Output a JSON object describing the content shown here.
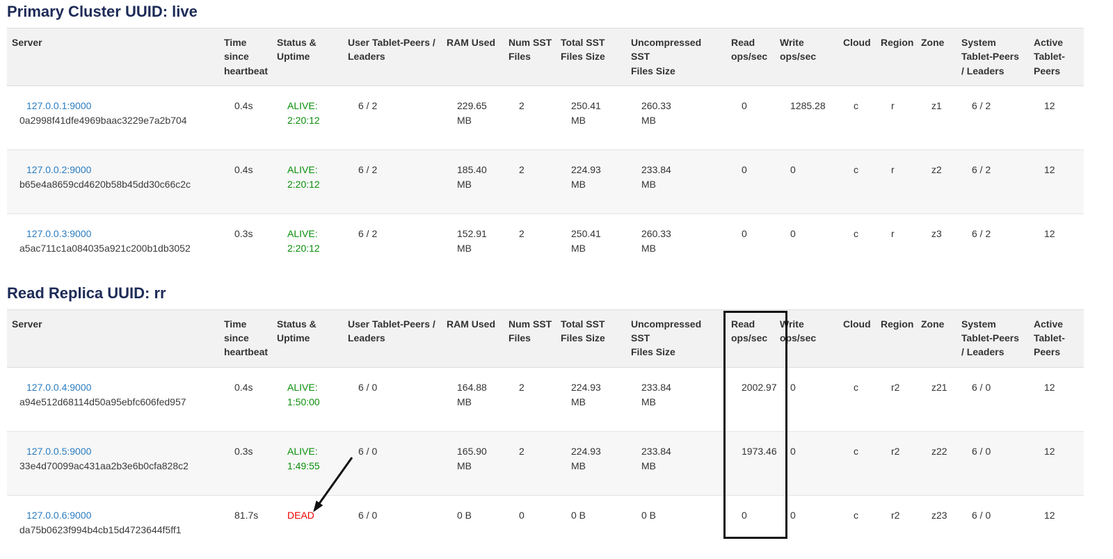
{
  "colors": {
    "title": "#1d2b57",
    "link": "#2a7cc0",
    "alive_green": "#0a8f0a",
    "dead_red": "#ee0000",
    "header_bg": "#f2f2f2",
    "stripe_bg": "#f7f7f7",
    "border": "#dddddd",
    "text": "#333333",
    "annotation": "#111111"
  },
  "columns": [
    "Server",
    "Time\nsince\nheartbeat",
    "Status &\nUptime",
    "User Tablet-Peers /\nLeaders",
    "RAM Used",
    "Num SST\nFiles",
    "Total SST\nFiles Size",
    "Uncompressed\nSST\nFiles Size",
    "Read\nops/sec",
    "Write\nops/sec",
    "Cloud",
    "Region",
    "Zone",
    "System\nTablet-Peers\n/ Leaders",
    "Active\nTablet-\nPeers"
  ],
  "sections": [
    {
      "title": "Primary Cluster UUID: live",
      "rows": [
        {
          "server_address": "127.0.0.1:9000",
          "server_uuid": "0a2998f41dfe4969baac3229e7a2b704",
          "time_since_heartbeat": "0.4s",
          "status": "ALIVE:\n2:20:12",
          "user_tablet_peers_leaders": "6 / 2",
          "ram_used": "229.65\nMB",
          "num_sst_files": "2",
          "total_sst_files_size": "250.41\nMB",
          "uncompressed_sst_files_size": "260.33\nMB",
          "read_ops_sec": "0",
          "write_ops_sec": "1285.28",
          "cloud": "c",
          "region": "r",
          "zone": "z1",
          "system_tablet_peers_leaders": "6 / 2",
          "active_tablet_peers": "12"
        },
        {
          "server_address": "127.0.0.2:9000",
          "server_uuid": "b65e4a8659cd4620b58b45dd30c66c2c",
          "time_since_heartbeat": "0.4s",
          "status": "ALIVE:\n2:20:12",
          "user_tablet_peers_leaders": "6 / 2",
          "ram_used": "185.40\nMB",
          "num_sst_files": "2",
          "total_sst_files_size": "224.93\nMB",
          "uncompressed_sst_files_size": "233.84\nMB",
          "read_ops_sec": "0",
          "write_ops_sec": "0",
          "cloud": "c",
          "region": "r",
          "zone": "z2",
          "system_tablet_peers_leaders": "6 / 2",
          "active_tablet_peers": "12"
        },
        {
          "server_address": "127.0.0.3:9000",
          "server_uuid": "a5ac711c1a084035a921c200b1db3052",
          "time_since_heartbeat": "0.3s",
          "status": "ALIVE:\n2:20:12",
          "user_tablet_peers_leaders": "6 / 2",
          "ram_used": "152.91\nMB",
          "num_sst_files": "2",
          "total_sst_files_size": "250.41\nMB",
          "uncompressed_sst_files_size": "260.33\nMB",
          "read_ops_sec": "0",
          "write_ops_sec": "0",
          "cloud": "c",
          "region": "r",
          "zone": "z3",
          "system_tablet_peers_leaders": "6 / 2",
          "active_tablet_peers": "12"
        }
      ]
    },
    {
      "title": "Read Replica UUID: rr",
      "rows": [
        {
          "server_address": "127.0.0.4:9000",
          "server_uuid": "a94e512d68114d50a95ebfc606fed957",
          "time_since_heartbeat": "0.4s",
          "status": "ALIVE:\n1:50:00",
          "user_tablet_peers_leaders": "6 / 0",
          "ram_used": "164.88\nMB",
          "num_sst_files": "2",
          "total_sst_files_size": "224.93\nMB",
          "uncompressed_sst_files_size": "233.84\nMB",
          "read_ops_sec": "2002.97",
          "write_ops_sec": "0",
          "cloud": "c",
          "region": "r2",
          "zone": "z21",
          "system_tablet_peers_leaders": "6 / 0",
          "active_tablet_peers": "12"
        },
        {
          "server_address": "127.0.0.5:9000",
          "server_uuid": "33e4d70099ac431aa2b3e6b0cfa828c2",
          "time_since_heartbeat": "0.3s",
          "status": "ALIVE:\n1:49:55",
          "user_tablet_peers_leaders": "6 / 0",
          "ram_used": "165.90\nMB",
          "num_sst_files": "2",
          "total_sst_files_size": "224.93\nMB",
          "uncompressed_sst_files_size": "233.84\nMB",
          "read_ops_sec": "1973.46",
          "write_ops_sec": "0",
          "cloud": "c",
          "region": "r2",
          "zone": "z22",
          "system_tablet_peers_leaders": "6 / 0",
          "active_tablet_peers": "12"
        },
        {
          "server_address": "127.0.0.6:9000",
          "server_uuid": "da75b0623f994b4cb15d4723644f5ff1",
          "time_since_heartbeat": "81.7s",
          "status": "DEAD",
          "user_tablet_peers_leaders": "6 / 0",
          "ram_used": "0 B",
          "num_sst_files": "0",
          "total_sst_files_size": "0 B",
          "uncompressed_sst_files_size": "0 B",
          "read_ops_sec": "0",
          "write_ops_sec": "0",
          "cloud": "c",
          "region": "r2",
          "zone": "z23",
          "system_tablet_peers_leaders": "6 / 0",
          "active_tablet_peers": "12"
        }
      ]
    }
  ],
  "annotations": {
    "highlighted_column": "Read ops/sec",
    "arrow_points_to": "DEAD"
  }
}
